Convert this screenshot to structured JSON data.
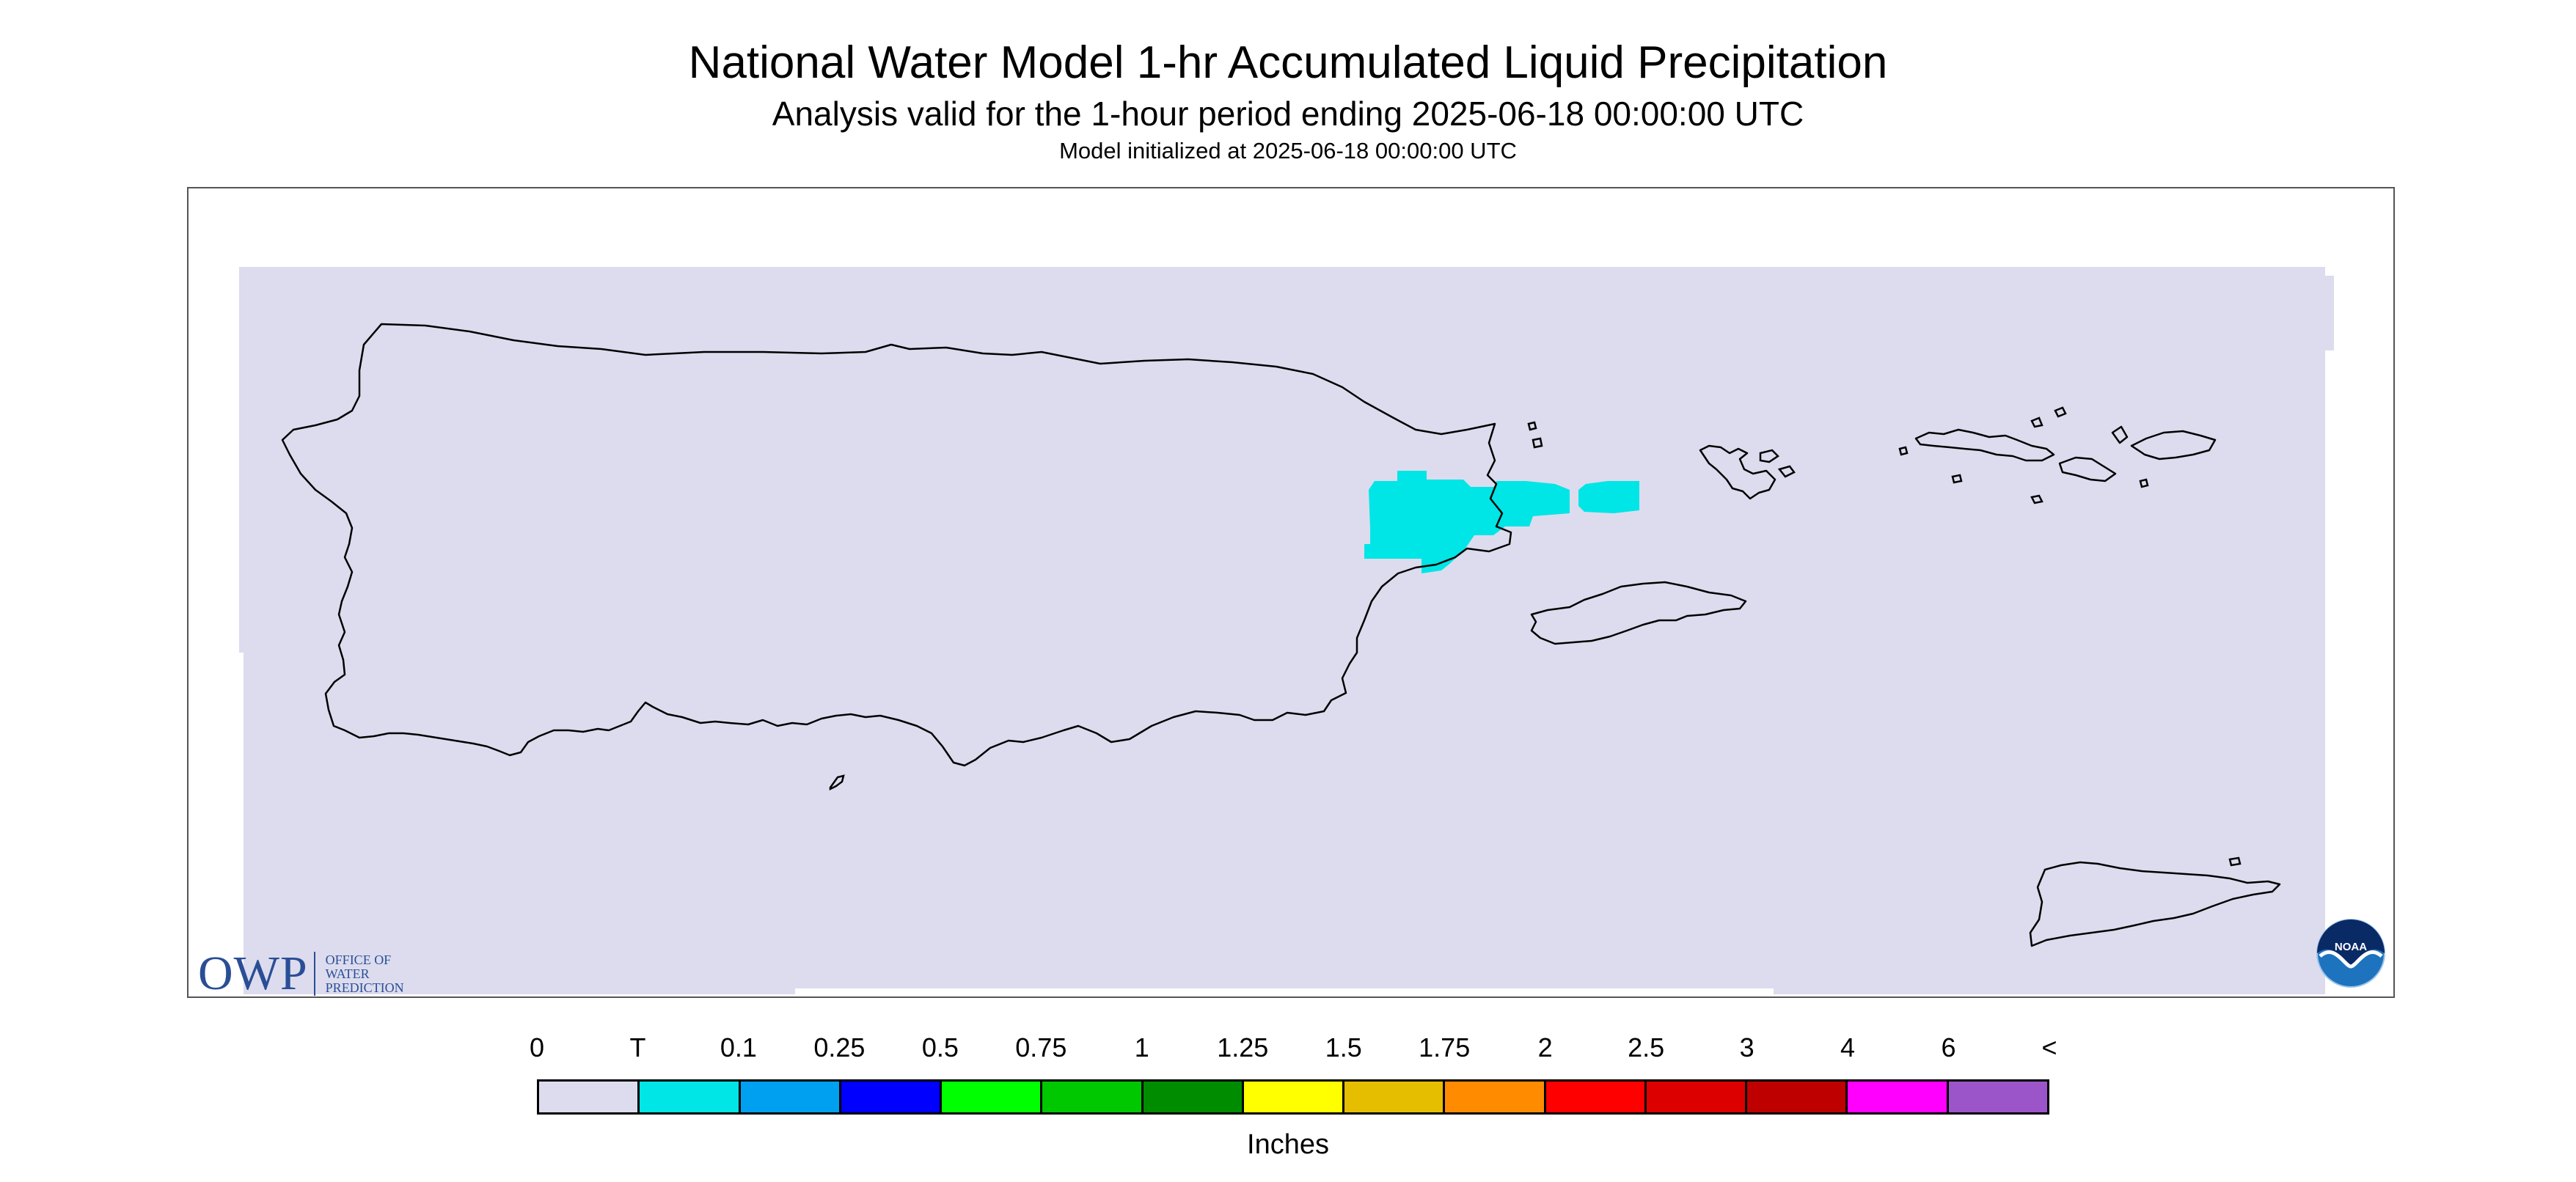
{
  "header": {
    "title": "National Water Model 1-hr Accumulated Liquid Precipitation",
    "subtitle": "Analysis valid for the 1-hour period ending 2025-06-18 00:00:00 UTC",
    "init": "Model initialized at 2025-06-18 00:00:00 UTC"
  },
  "map": {
    "region": "Puerto Rico and U.S. Virgin Islands",
    "background_color": "#dcdcee",
    "precip_color": "#00e5e5",
    "outline_color": "#000000"
  },
  "legend": {
    "units": "Inches",
    "labels": [
      "0",
      "T",
      "0.1",
      "0.25",
      "0.5",
      "0.75",
      "1",
      "1.25",
      "1.5",
      "1.75",
      "2",
      "2.5",
      "3",
      "4",
      "6",
      "<"
    ],
    "colors": [
      "#dcdcee",
      "#00e5e5",
      "#00a0f0",
      "#0000ff",
      "#00ff00",
      "#00c800",
      "#008c00",
      "#ffff00",
      "#e6be00",
      "#ff8c00",
      "#ff0000",
      "#dc0000",
      "#be0000",
      "#ff00ff",
      "#9b55c8"
    ]
  },
  "logos": {
    "owp_mark": "OWP",
    "owp_line1": "OFFICE OF",
    "owp_line2": "WATER",
    "owp_line3": "PREDICTION",
    "noaa_text": "NOAA"
  }
}
